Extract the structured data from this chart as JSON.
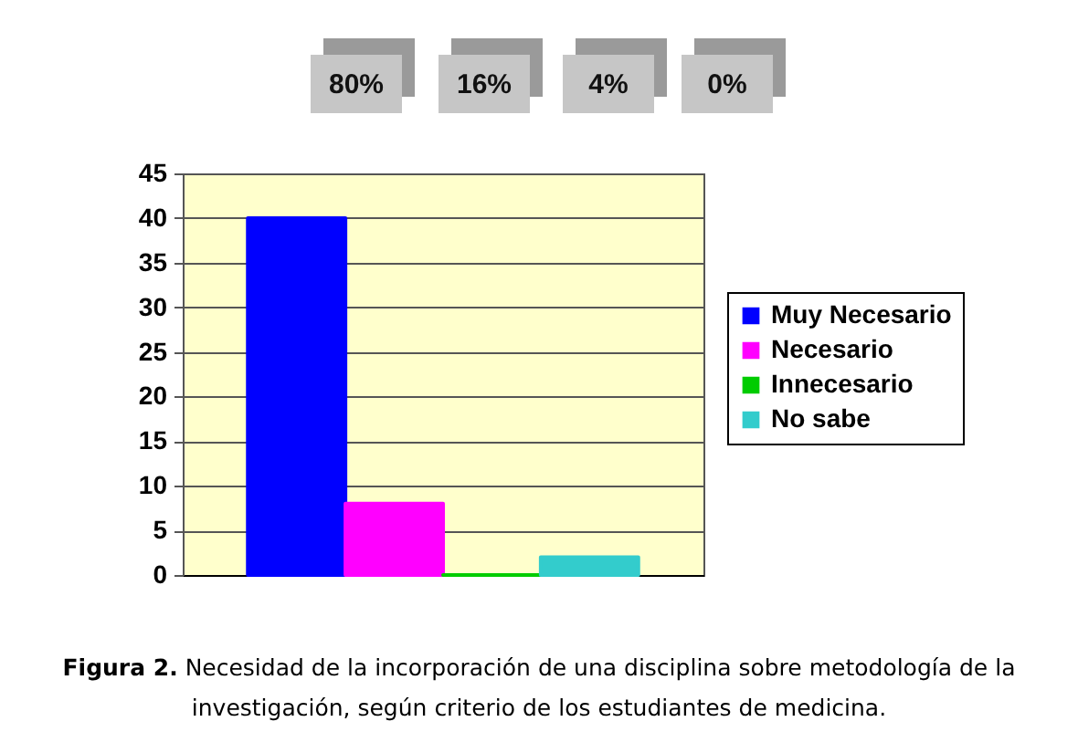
{
  "chart_data": {
    "type": "bar",
    "categories": [
      null
    ],
    "series": [
      {
        "name": "Muy Necesario",
        "color": "#0000ff",
        "values": [
          40
        ]
      },
      {
        "name": "Necesario",
        "color": "#ff00ff",
        "values": [
          8
        ]
      },
      {
        "name": "Innecesario",
        "color": "#00cc00",
        "values": [
          0
        ]
      },
      {
        "name": "No sabe",
        "color": "#33cccc",
        "values": [
          2
        ]
      }
    ],
    "ylim": [
      0,
      45
    ],
    "yticks": [
      0,
      5,
      10,
      15,
      20,
      25,
      30,
      35,
      40,
      45
    ],
    "grid": "y",
    "legend": "right",
    "tick_labels": "y",
    "annotations": [
      "80%",
      "16%",
      "4%",
      "0%",
      "Figura 2. Necesidad de la incorporación de una disciplina sobre metodología de la investigación, según criterio de los estudiantes de medicina."
    ]
  }
}
